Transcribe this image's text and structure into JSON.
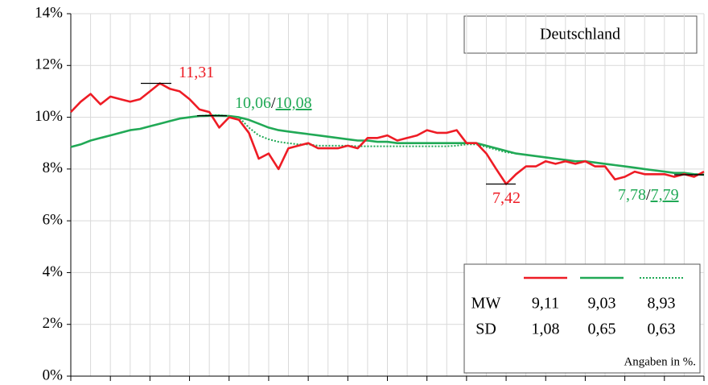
{
  "chart_data": {
    "type": "line",
    "box_title": "Deutschland",
    "note": "Angaben in %.",
    "ylim": [
      0,
      14
    ],
    "yticks": [
      {
        "value": 0,
        "label": "0%"
      },
      {
        "value": 2,
        "label": "2%"
      },
      {
        "value": 4,
        "label": "4%"
      },
      {
        "value": 6,
        "label": "6%"
      },
      {
        "value": 8,
        "label": "8%"
      },
      {
        "value": 10,
        "label": "10%"
      },
      {
        "value": 12,
        "label": "12%"
      },
      {
        "value": 14,
        "label": "14%"
      }
    ],
    "grid": true,
    "series": [
      {
        "color": "#ee1c25",
        "style": "solid",
        "values": [
          10.2,
          10.6,
          10.9,
          10.5,
          10.8,
          10.7,
          10.6,
          10.7,
          11.0,
          11.31,
          11.1,
          11.0,
          10.7,
          10.3,
          10.2,
          9.6,
          10.0,
          9.9,
          9.4,
          8.4,
          8.6,
          8.0,
          8.8,
          8.9,
          9.0,
          8.8,
          8.8,
          8.8,
          8.9,
          8.8,
          9.2,
          9.2,
          9.3,
          9.1,
          9.2,
          9.3,
          9.5,
          9.4,
          9.4,
          9.5,
          9.0,
          9.0,
          8.6,
          8.0,
          7.42,
          7.8,
          8.1,
          8.1,
          8.3,
          8.2,
          8.3,
          8.2,
          8.3,
          8.1,
          8.1,
          7.6,
          7.7,
          7.9,
          7.8,
          7.8,
          7.8,
          7.7,
          7.8,
          7.7,
          7.9
        ]
      },
      {
        "color": "#21a956",
        "style": "solid",
        "values": [
          8.85,
          8.95,
          9.1,
          9.2,
          9.3,
          9.4,
          9.5,
          9.55,
          9.65,
          9.75,
          9.85,
          9.95,
          10.0,
          10.05,
          10.06,
          10.06,
          10.05,
          10.0,
          9.9,
          9.75,
          9.6,
          9.5,
          9.45,
          9.4,
          9.35,
          9.3,
          9.25,
          9.2,
          9.15,
          9.1,
          9.1,
          9.05,
          9.05,
          9.0,
          9.0,
          9.0,
          9.0,
          9.0,
          9.0,
          9.0,
          9.0,
          9.0,
          8.9,
          8.8,
          8.7,
          8.6,
          8.55,
          8.5,
          8.45,
          8.4,
          8.35,
          8.3,
          8.3,
          8.25,
          8.2,
          8.15,
          8.1,
          8.05,
          8.0,
          7.95,
          7.9,
          7.85,
          7.85,
          7.8,
          7.78
        ]
      },
      {
        "color": "#21a956",
        "style": "dotted",
        "values": [
          8.85,
          8.95,
          9.1,
          9.2,
          9.3,
          9.4,
          9.5,
          9.55,
          9.65,
          9.75,
          9.85,
          9.95,
          10.0,
          10.05,
          10.08,
          10.08,
          10.05,
          10.0,
          9.6,
          9.3,
          9.15,
          9.05,
          9.0,
          8.95,
          8.95,
          8.9,
          8.9,
          8.9,
          8.9,
          8.88,
          8.88,
          8.88,
          8.88,
          8.88,
          8.88,
          8.88,
          8.88,
          8.88,
          8.88,
          8.9,
          8.95,
          8.95,
          8.85,
          8.75,
          8.65,
          8.6,
          8.55,
          8.5,
          8.45,
          8.4,
          8.35,
          8.3,
          8.3,
          8.25,
          8.2,
          8.15,
          8.1,
          8.05,
          8.0,
          7.95,
          7.9,
          7.85,
          7.85,
          7.8,
          7.79
        ]
      }
    ],
    "annotations": [
      {
        "parts": [
          {
            "text": "11,31",
            "value": 11.31,
            "series": 0
          }
        ]
      },
      {
        "parts": [
          {
            "text": "10,06",
            "value": 10.06,
            "series": 1
          },
          {
            "text": "/"
          },
          {
            "text": "10,08",
            "value": 10.08,
            "series": 2
          }
        ]
      },
      {
        "parts": [
          {
            "text": "7,42",
            "value": 7.42,
            "series": 0
          }
        ]
      },
      {
        "parts": [
          {
            "text": "7,78",
            "value": 7.78,
            "series": 1
          },
          {
            "text": "/"
          },
          {
            "text": "7,79",
            "value": 7.79,
            "series": 2
          }
        ]
      }
    ],
    "stats": [
      {
        "label": "MW",
        "values": [
          9.11,
          9.03,
          8.93
        ],
        "value_labels": [
          "9,11",
          "9,03",
          "8,93"
        ]
      },
      {
        "label": "SD",
        "values": [
          1.08,
          0.65,
          0.63
        ],
        "value_labels": [
          "1,08",
          "0,65",
          "0,63"
        ]
      }
    ]
  }
}
